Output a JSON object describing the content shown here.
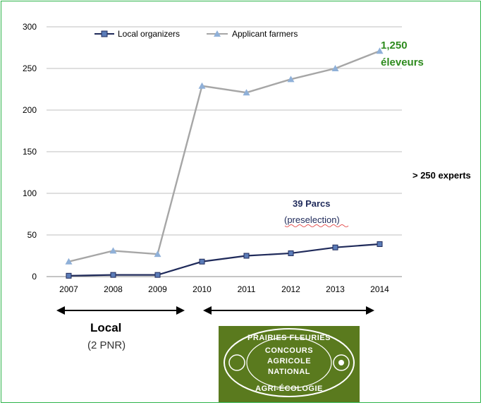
{
  "chart_data": {
    "type": "line",
    "x": [
      "2007",
      "2008",
      "2009",
      "2010",
      "2011",
      "2012",
      "2013",
      "2014"
    ],
    "ylim": [
      0,
      300
    ],
    "yticks": [
      "0",
      "50",
      "100",
      "150",
      "200",
      "250",
      "300"
    ],
    "grid": true,
    "legend_position": "top",
    "series": [
      {
        "name": "Local organizers",
        "values": [
          1,
          2,
          2,
          18,
          25,
          28,
          35,
          39
        ],
        "color": "#1f2a5a",
        "marker": "square"
      },
      {
        "name": "Applicant farmers",
        "values": [
          18,
          31,
          27,
          229,
          221,
          237,
          250,
          271
        ],
        "color": "#a6a6a6",
        "marker": "triangle"
      }
    ],
    "annotations": {
      "farmers_count": "1,250",
      "farmers_label": "éleveurs",
      "experts": "> 250 experts",
      "parcs": "39 Parcs",
      "parcs_sub": "(preselection)"
    }
  },
  "periods": {
    "local_label": "Local",
    "local_sub": "(2 PNR)"
  },
  "badge": {
    "line1": "PRAIRIES FLEURIES",
    "line2": "CONCOURS",
    "line3": "AGRICOLE",
    "line4": "NATIONAL",
    "line5": "AGRI-ÉCOLOGIE",
    "bg_color": "#5a7a1e"
  }
}
